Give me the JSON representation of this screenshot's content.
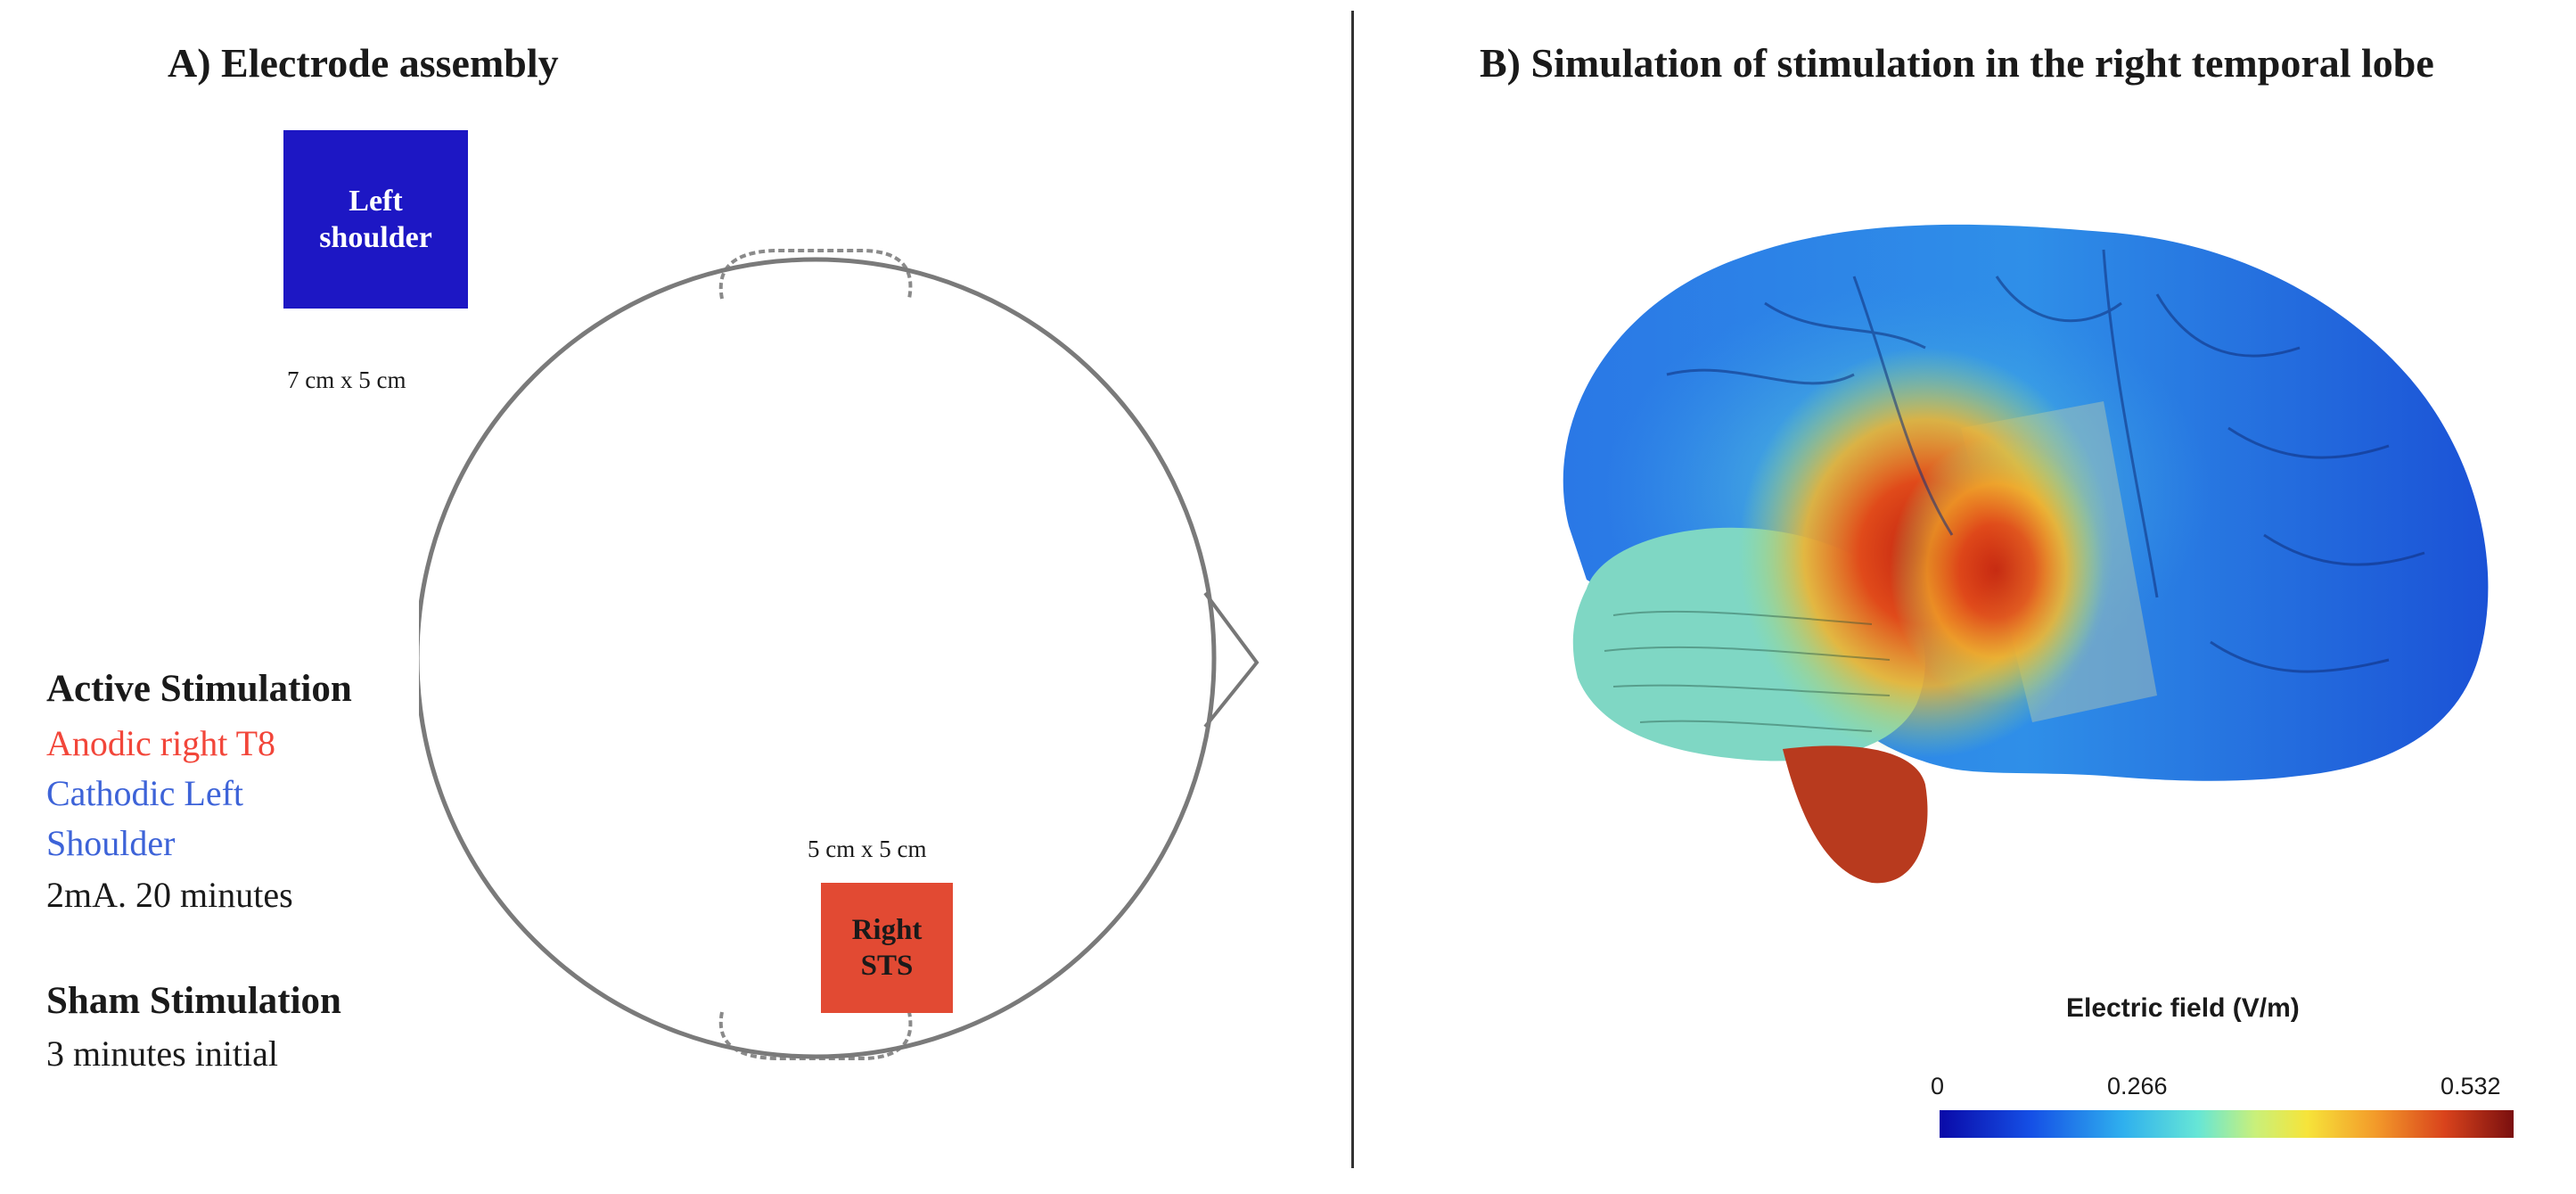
{
  "panel_a": {
    "title": "A) Electrode assembly",
    "left_electrode": {
      "line1": "Left",
      "line2": "shoulder",
      "size": "7 cm x 5 cm",
      "color": "#1d17c4"
    },
    "right_electrode": {
      "line1": "Right",
      "line2": "STS",
      "size": "5 cm x 5 cm",
      "color": "#e24a33"
    },
    "active": {
      "heading": "Active Stimulation",
      "anodic": "Anodic right T8",
      "cathodic_line1": "Cathodic Left",
      "cathodic_line2": "Shoulder",
      "dose": "2mA. 20 minutes",
      "anodic_color": "#f2463a",
      "cathodic_color": "#3d63d8"
    },
    "sham": {
      "heading": "Sham Stimulation",
      "detail": "3 minutes initial"
    }
  },
  "panel_b": {
    "title": "B) Simulation of stimulation in the right temporal lobe",
    "colorbar": {
      "title": "Electric field (V/m)",
      "min": "0",
      "mid": "0.266",
      "max": "0.532"
    }
  }
}
